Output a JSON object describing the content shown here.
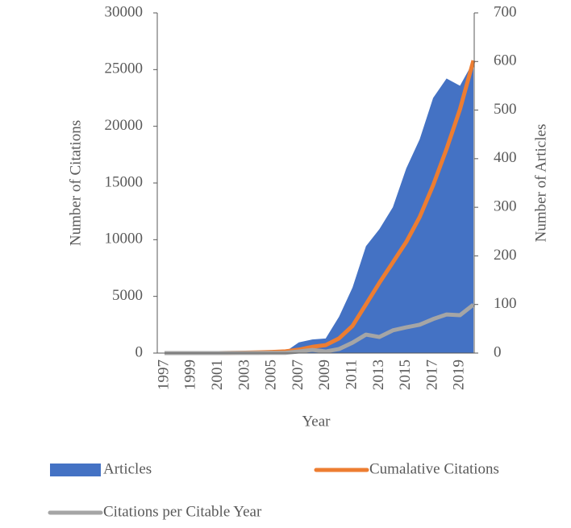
{
  "chart_data": {
    "type": "combo",
    "x_label": "Year",
    "y_label": "Number of Citations",
    "y2_label": "Number of Articles",
    "categories": [
      "1997",
      null,
      "1999",
      null,
      "2001",
      null,
      "2003",
      null,
      "2005",
      null,
      "2007",
      null,
      "2009",
      null,
      "2011",
      null,
      "2013",
      null,
      "2015",
      null,
      "2017",
      null,
      "2019",
      null
    ],
    "series": [
      {
        "name": "Articles",
        "type": "area",
        "axis": "y2",
        "color": "#4472c4",
        "values": [
          0,
          0,
          0,
          0,
          0,
          1,
          2,
          2,
          4,
          3,
          22,
          28,
          30,
          75,
          135,
          220,
          255,
          300,
          380,
          440,
          525,
          565,
          550,
          600
        ]
      },
      {
        "name": "Cumalative Citations",
        "type": "line",
        "color": "#ed7d31",
        "values": [
          0,
          0,
          0,
          0,
          0,
          20,
          40,
          60,
          100,
          150,
          300,
          550,
          700,
          1300,
          2400,
          4300,
          6200,
          8000,
          9800,
          12000,
          14800,
          18000,
          21500,
          25800
        ]
      },
      {
        "name": "Citations per Citable Year",
        "type": "line",
        "color": "#a5a5a5",
        "values": [
          0,
          0,
          0,
          0,
          0,
          5,
          10,
          10,
          20,
          20,
          140,
          280,
          140,
          360,
          920,
          1630,
          1420,
          2000,
          2270,
          2500,
          3000,
          3400,
          3340,
          4270
        ]
      }
    ],
    "ylim": [
      0,
      30000
    ],
    "yticks": [
      0,
      5000,
      10000,
      15000,
      20000,
      25000,
      30000
    ],
    "y2lim": [
      0,
      700
    ],
    "y2ticks": [
      0,
      100,
      200,
      300,
      400,
      500,
      600,
      700
    ],
    "legend": "bottom"
  }
}
